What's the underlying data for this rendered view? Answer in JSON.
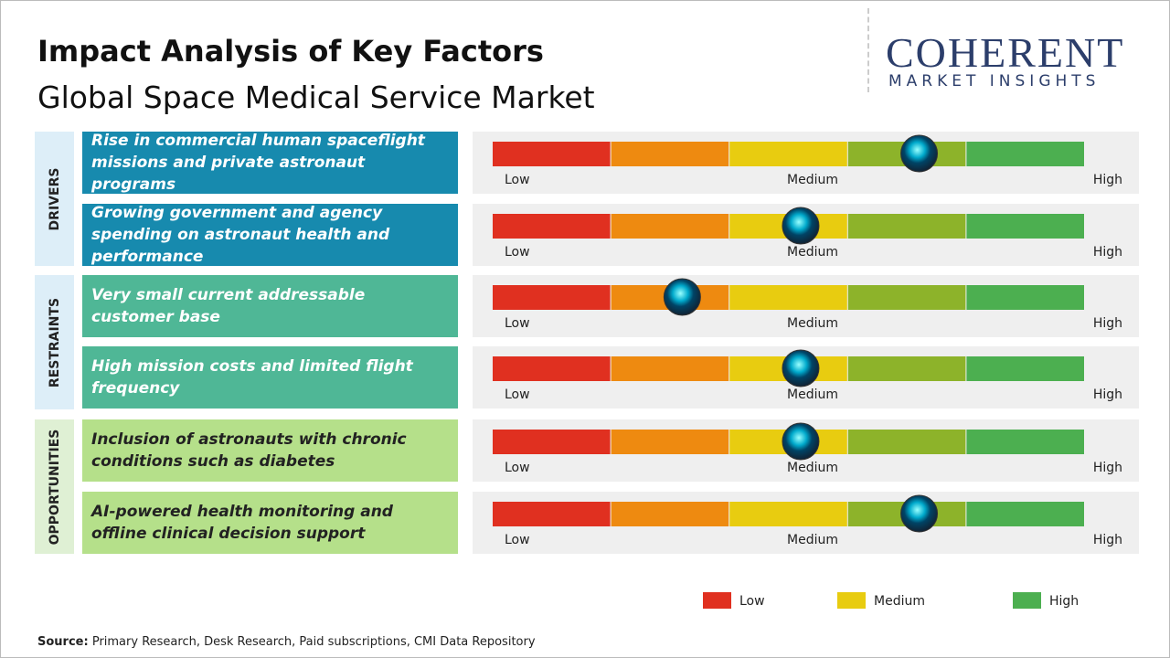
{
  "header": {
    "title": "Impact Analysis of Key Factors",
    "subtitle": "Global Space Medical Service Market"
  },
  "logo": {
    "name": "COHERENT",
    "tagline": "MARKET INSIGHTS"
  },
  "impact_range": [
    0,
    5
  ],
  "scale_labels": [
    "Low",
    "Medium",
    "High"
  ],
  "groups": [
    {
      "label": "DRIVERS",
      "factors": [
        {
          "text": "Rise in commercial human spaceflight missions and private astronaut programs",
          "impact": 3.6
        },
        {
          "text": "Growing government and agency spending on astronaut health and performance",
          "impact": 2.6
        }
      ]
    },
    {
      "label": "RESTRAINTS",
      "factors": [
        {
          "text": "Very small current addressable customer base",
          "impact": 1.6
        },
        {
          "text": "High mission costs and limited flight frequency",
          "impact": 2.6
        }
      ]
    },
    {
      "label": "OPPORTUNITIES",
      "factors": [
        {
          "text": "Inclusion of astronauts with chronic conditions such as diabetes",
          "impact": 2.6
        },
        {
          "text": "AI-powered health monitoring and offline clinical decision support",
          "impact": 3.6
        }
      ]
    }
  ],
  "legend": [
    {
      "label": "Low",
      "color": "#e03020"
    },
    {
      "label": "Medium",
      "color": "#e8cc10"
    },
    {
      "label": "High",
      "color": "#4caf50"
    }
  ],
  "source": {
    "label": "Source:",
    "text": "Primary Research, Desk Research, Paid subscriptions, CMI Data Repository"
  }
}
